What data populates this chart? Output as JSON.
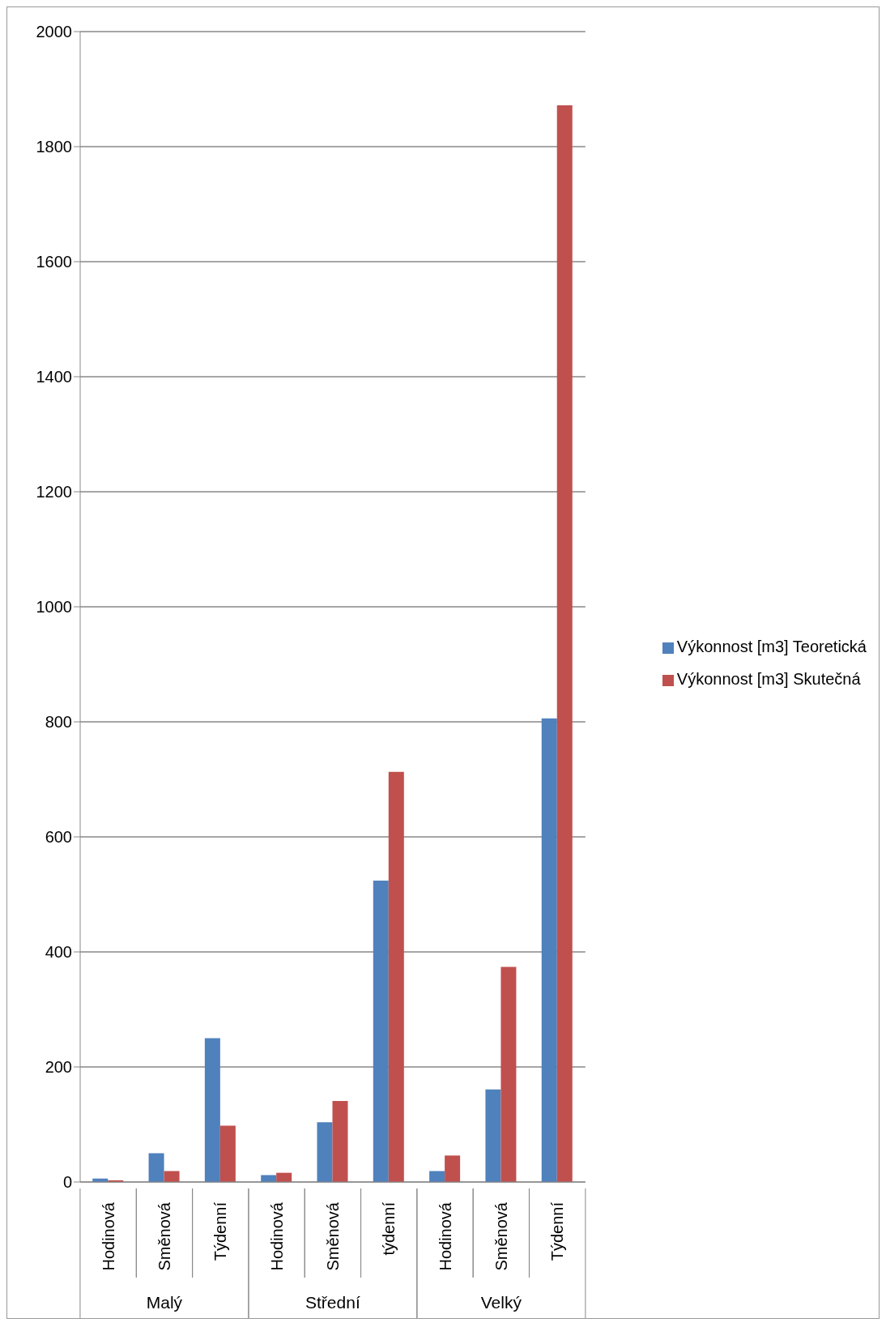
{
  "chart_data": {
    "type": "bar",
    "categories": [
      "Hodinová",
      "Směnová",
      "Týdenní",
      "Hodinová",
      "Směnová",
      "týdenní",
      "Hodinová",
      "Směnová",
      "Týdenní"
    ],
    "annotations": [
      "Malý",
      "Střední",
      "Velký"
    ],
    "series": [
      {
        "name": "Výkonnost [m3] Teoretická",
        "color": "#4f81bd",
        "values": [
          6,
          50,
          250,
          12,
          104,
          524,
          19,
          161,
          806
        ]
      },
      {
        "name": "Výkonnost [m3] Skutečná",
        "color": "#c0504d",
        "values": [
          3,
          19,
          98,
          16,
          141,
          713,
          46,
          374,
          1872
        ]
      }
    ],
    "ylim": [
      0,
      2000
    ],
    "yticks": [
      0,
      200,
      400,
      600,
      800,
      1000,
      1200,
      1400,
      1600,
      1800,
      2000
    ],
    "grid": "y",
    "legend": "right"
  }
}
